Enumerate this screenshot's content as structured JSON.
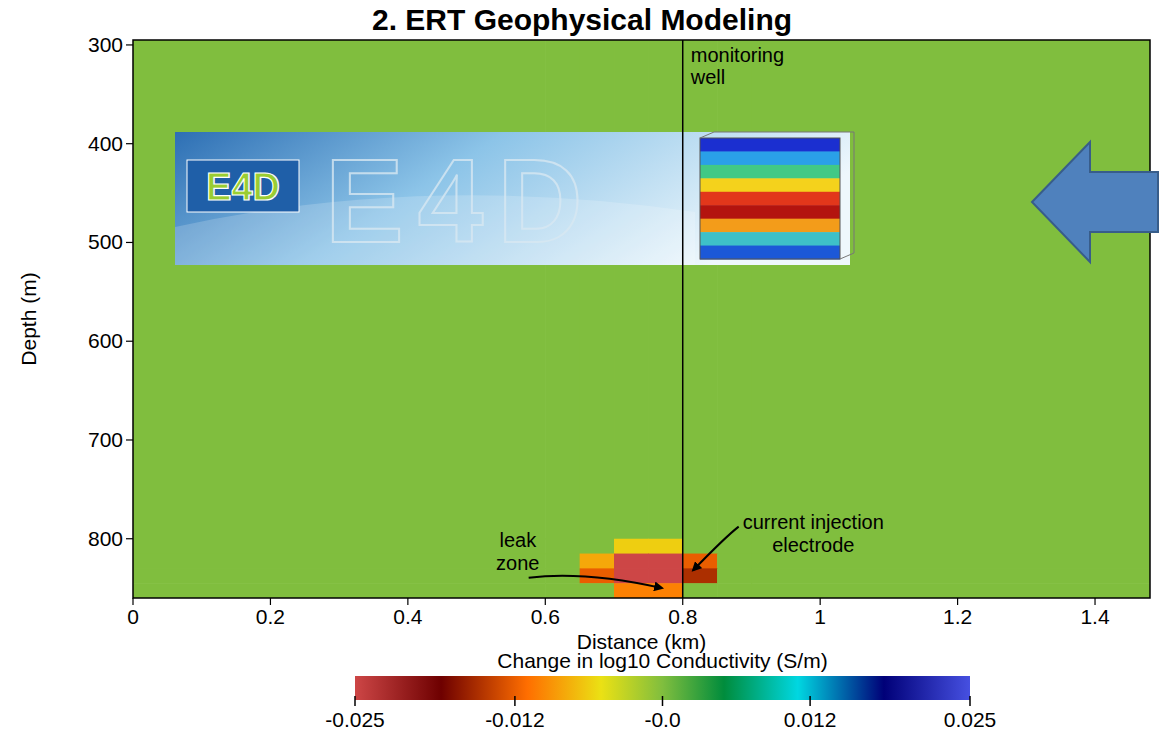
{
  "chart_data": {
    "type": "heatmap",
    "title": "2. ERT Geophysical Modeling",
    "x_label": "Distance (km)",
    "y_label": "Depth (m)",
    "xlim": [
      0,
      1.48
    ],
    "xticks": [
      0,
      0.2,
      0.4,
      0.6,
      0.8,
      1.0,
      1.2,
      1.4
    ],
    "ylim": [
      295,
      860
    ],
    "yticks": [
      300,
      400,
      500,
      600,
      700,
      800
    ],
    "x_edges": [
      0,
      0.6,
      0.65,
      0.7,
      0.75,
      0.8,
      0.85,
      0.9,
      1.48
    ],
    "y_edges": [
      295,
      800,
      815,
      830,
      845,
      860
    ],
    "cells": [
      [
        0,
        0,
        0,
        0,
        0,
        0,
        0,
        0
      ],
      [
        0,
        0,
        0,
        -0.006,
        -0.006,
        0,
        0,
        0
      ],
      [
        0,
        0,
        -0.008,
        -0.025,
        -0.025,
        -0.012,
        0,
        0
      ],
      [
        0,
        0,
        -0.012,
        -0.025,
        -0.025,
        -0.015,
        0,
        0
      ],
      [
        0,
        0,
        0,
        -0.01,
        -0.01,
        0,
        0,
        0
      ]
    ],
    "colorbar": {
      "label": "Change in log10 Conductivity (S/m)",
      "range": [
        -0.025,
        0.025
      ],
      "ticks": [
        -0.025,
        -0.012,
        {
          "value": 0,
          "label": "-0.0"
        },
        0.012,
        0.025
      ]
    },
    "annotations": [
      {
        "text": "monitoring well",
        "x": 0.8
      },
      {
        "text": "leak zone",
        "x": 0.56,
        "y": 808,
        "target_x": 0.77,
        "target_y": 850
      },
      {
        "text": "current injection electrode",
        "x": 0.99,
        "y": 790,
        "target_x": 0.815,
        "target_y": 832
      }
    ],
    "logo_text": "E4D"
  }
}
